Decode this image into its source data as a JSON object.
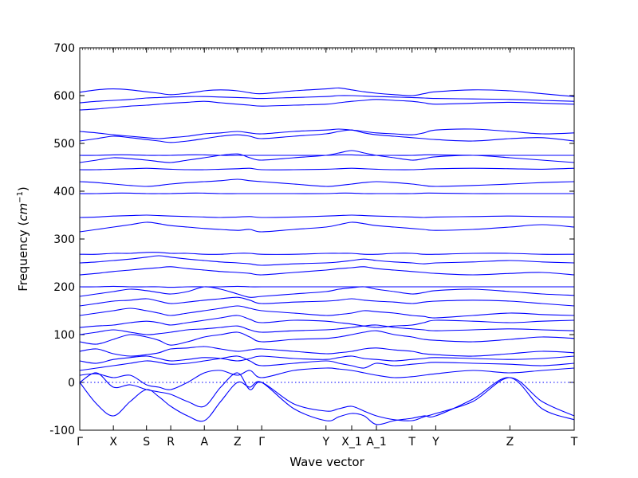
{
  "chart_data": {
    "type": "line",
    "title": "",
    "xlabel": "Wave vector",
    "ylabel_text": "Frequency (",
    "ylabel_unit": "cm",
    "ylabel_exp": "−1",
    "ylabel_close": ")",
    "ylim": [
      -100,
      700
    ],
    "yticks": [
      -100,
      0,
      100,
      200,
      300,
      400,
      500,
      600,
      700
    ],
    "grid": false,
    "legend": "none",
    "line_color": "#0000ff",
    "zero_line": true,
    "high_symmetry_points": [
      {
        "label": "Γ",
        "x": 0.0
      },
      {
        "label": "X",
        "x": 0.068
      },
      {
        "label": "S",
        "x": 0.135
      },
      {
        "label": "R",
        "x": 0.184
      },
      {
        "label": "A",
        "x": 0.252
      },
      {
        "label": "Z",
        "x": 0.319
      },
      {
        "label": "Γ",
        "x": 0.368
      },
      {
        "label": "Y",
        "x": 0.498
      },
      {
        "label": "X_1",
        "x": 0.55
      },
      {
        "label": "A_1",
        "x": 0.6
      },
      {
        "label": "T",
        "x": 0.672
      },
      {
        "label": "Y",
        "x": 0.72
      },
      {
        "label": "Z",
        "x": 0.87
      },
      {
        "label": "T",
        "x": 1.0
      }
    ],
    "series_x": [
      0.0,
      0.034,
      0.068,
      0.102,
      0.135,
      0.16,
      0.184,
      0.218,
      0.252,
      0.285,
      0.319,
      0.344,
      0.368,
      0.433,
      0.498,
      0.524,
      0.55,
      0.575,
      0.6,
      0.636,
      0.672,
      0.696,
      0.72,
      0.795,
      0.87,
      0.935,
      1.0
    ],
    "series": [
      {
        "values": [
          0,
          -45,
          -70,
          -40,
          -15,
          -30,
          -50,
          -70,
          -80,
          -40,
          0,
          -10,
          0,
          -55,
          -80,
          -72,
          -65,
          -70,
          -88,
          -80,
          -75,
          -70,
          -70,
          -35,
          10,
          -55,
          -78
        ]
      },
      {
        "values": [
          0,
          20,
          -10,
          -5,
          -15,
          -20,
          -25,
          -40,
          -50,
          -10,
          20,
          -15,
          0,
          -45,
          -60,
          -55,
          -50,
          -60,
          -70,
          -78,
          -80,
          -72,
          -65,
          -40,
          10,
          -40,
          -70
        ]
      },
      {
        "values": [
          15,
          18,
          10,
          15,
          -5,
          -10,
          -15,
          0,
          20,
          25,
          15,
          25,
          10,
          25,
          30,
          28,
          25,
          20,
          15,
          10,
          12,
          15,
          18,
          25,
          20,
          25,
          30
        ]
      },
      {
        "values": [
          25,
          30,
          35,
          40,
          45,
          42,
          38,
          40,
          45,
          50,
          55,
          45,
          35,
          40,
          45,
          40,
          35,
          30,
          40,
          35,
          38,
          40,
          42,
          40,
          38,
          35,
          40
        ]
      },
      {
        "values": [
          45,
          40,
          48,
          52,
          55,
          50,
          45,
          48,
          52,
          50,
          45,
          50,
          55,
          50,
          48,
          52,
          55,
          50,
          48,
          45,
          48,
          50,
          52,
          50,
          48,
          50,
          55
        ]
      },
      {
        "values": [
          65,
          70,
          60,
          55,
          58,
          62,
          70,
          72,
          75,
          70,
          65,
          68,
          70,
          65,
          60,
          62,
          65,
          70,
          72,
          68,
          65,
          60,
          58,
          55,
          60,
          65,
          62
        ]
      },
      {
        "values": [
          85,
          80,
          90,
          100,
          95,
          88,
          78,
          85,
          95,
          100,
          105,
          95,
          85,
          90,
          92,
          95,
          100,
          105,
          108,
          100,
          95,
          90,
          88,
          85,
          90,
          95,
          92
        ]
      },
      {
        "values": [
          100,
          105,
          110,
          105,
          100,
          102,
          105,
          110,
          112,
          115,
          118,
          110,
          105,
          108,
          110,
          112,
          115,
          118,
          120,
          115,
          112,
          110,
          108,
          110,
          112,
          110,
          108
        ]
      },
      {
        "values": [
          115,
          118,
          120,
          125,
          128,
          125,
          120,
          125,
          130,
          135,
          140,
          132,
          125,
          130,
          128,
          125,
          122,
          118,
          115,
          118,
          120,
          125,
          130,
          128,
          125,
          128,
          130
        ]
      },
      {
        "values": [
          140,
          145,
          150,
          155,
          150,
          145,
          140,
          145,
          150,
          155,
          160,
          155,
          150,
          145,
          140,
          142,
          145,
          150,
          148,
          145,
          140,
          138,
          135,
          140,
          145,
          142,
          140
        ]
      },
      {
        "values": [
          160,
          165,
          170,
          172,
          175,
          170,
          165,
          168,
          172,
          175,
          178,
          172,
          165,
          168,
          170,
          172,
          175,
          172,
          170,
          168,
          165,
          168,
          170,
          172,
          170,
          165,
          160
        ]
      },
      {
        "values": [
          180,
          185,
          190,
          195,
          192,
          188,
          185,
          190,
          200,
          195,
          185,
          178,
          180,
          185,
          190,
          195,
          198,
          200,
          195,
          190,
          185,
          188,
          192,
          195,
          190,
          185,
          182
        ]
      },
      {
        "values": [
          200,
          200,
          201,
          200,
          200,
          200,
          199,
          200,
          200,
          200,
          201,
          200,
          200,
          200,
          200,
          200,
          200,
          200,
          200,
          200,
          200,
          200,
          200,
          200,
          200,
          200,
          200
        ]
      },
      {
        "values": [
          225,
          228,
          232,
          235,
          238,
          240,
          242,
          238,
          235,
          232,
          230,
          228,
          225,
          230,
          235,
          238,
          240,
          242,
          238,
          235,
          232,
          230,
          228,
          225,
          228,
          230,
          225
        ]
      },
      {
        "values": [
          250,
          252,
          255,
          258,
          262,
          265,
          262,
          258,
          255,
          252,
          250,
          248,
          245,
          248,
          250,
          252,
          255,
          258,
          255,
          252,
          250,
          248,
          250,
          252,
          255,
          252,
          250
        ]
      },
      {
        "values": [
          268,
          268,
          270,
          270,
          272,
          272,
          270,
          270,
          268,
          268,
          270,
          270,
          268,
          268,
          270,
          270,
          270,
          268,
          268,
          270,
          270,
          268,
          268,
          270,
          270,
          268,
          268
        ]
      },
      {
        "values": [
          315,
          320,
          325,
          330,
          335,
          332,
          328,
          325,
          322,
          320,
          318,
          320,
          315,
          320,
          325,
          330,
          335,
          332,
          328,
          325,
          322,
          320,
          318,
          320,
          325,
          330,
          325
        ]
      },
      {
        "values": [
          345,
          346,
          348,
          349,
          350,
          349,
          348,
          347,
          346,
          345,
          346,
          347,
          345,
          346,
          348,
          349,
          350,
          349,
          348,
          347,
          346,
          345,
          346,
          347,
          348,
          347,
          346
        ]
      },
      {
        "values": [
          395,
          395,
          396,
          396,
          395,
          395,
          395,
          396,
          396,
          395,
          395,
          395,
          395,
          395,
          395,
          396,
          396,
          395,
          395,
          395,
          395,
          396,
          396,
          395,
          395,
          395,
          395
        ]
      },
      {
        "values": [
          420,
          418,
          415,
          412,
          410,
          412,
          415,
          418,
          420,
          422,
          425,
          422,
          420,
          415,
          410,
          412,
          415,
          418,
          420,
          418,
          415,
          412,
          410,
          412,
          415,
          418,
          420
        ]
      },
      {
        "values": [
          445,
          445,
          446,
          447,
          448,
          447,
          446,
          445,
          445,
          446,
          447,
          448,
          445,
          445,
          446,
          447,
          448,
          447,
          446,
          445,
          445,
          446,
          447,
          448,
          447,
          446,
          448
        ]
      },
      {
        "values": [
          460,
          465,
          470,
          468,
          465,
          462,
          460,
          465,
          470,
          475,
          478,
          470,
          465,
          470,
          475,
          480,
          485,
          480,
          475,
          470,
          465,
          468,
          472,
          475,
          470,
          465,
          460
        ]
      },
      {
        "values": [
          475,
          475,
          476,
          476,
          475,
          475,
          475,
          476,
          476,
          475,
          475,
          475,
          475,
          475,
          475,
          476,
          476,
          475,
          475,
          475,
          475,
          476,
          476,
          475,
          475,
          475,
          475
        ]
      },
      {
        "values": [
          505,
          510,
          515,
          512,
          508,
          505,
          502,
          505,
          510,
          515,
          518,
          515,
          510,
          515,
          520,
          525,
          528,
          522,
          518,
          515,
          512,
          510,
          508,
          505,
          510,
          512,
          505
        ]
      },
      {
        "values": [
          525,
          522,
          518,
          515,
          512,
          510,
          512,
          515,
          520,
          522,
          525,
          522,
          520,
          525,
          528,
          530,
          528,
          525,
          522,
          520,
          518,
          522,
          528,
          530,
          525,
          520,
          522
        ]
      },
      {
        "values": [
          570,
          572,
          575,
          578,
          580,
          582,
          584,
          586,
          588,
          585,
          582,
          580,
          578,
          580,
          582,
          585,
          588,
          590,
          592,
          590,
          588,
          585,
          582,
          584,
          586,
          584,
          582
        ]
      },
      {
        "values": [
          585,
          588,
          590,
          592,
          595,
          596,
          597,
          598,
          598,
          597,
          596,
          595,
          594,
          596,
          598,
          600,
          600,
          599,
          598,
          597,
          596,
          595,
          594,
          593,
          592,
          590,
          588
        ]
      },
      {
        "values": [
          607,
          612,
          614,
          612,
          608,
          605,
          602,
          605,
          610,
          612,
          610,
          606,
          604,
          610,
          614,
          616,
          612,
          608,
          605,
          602,
          600,
          604,
          608,
          612,
          610,
          604,
          598
        ]
      }
    ]
  }
}
